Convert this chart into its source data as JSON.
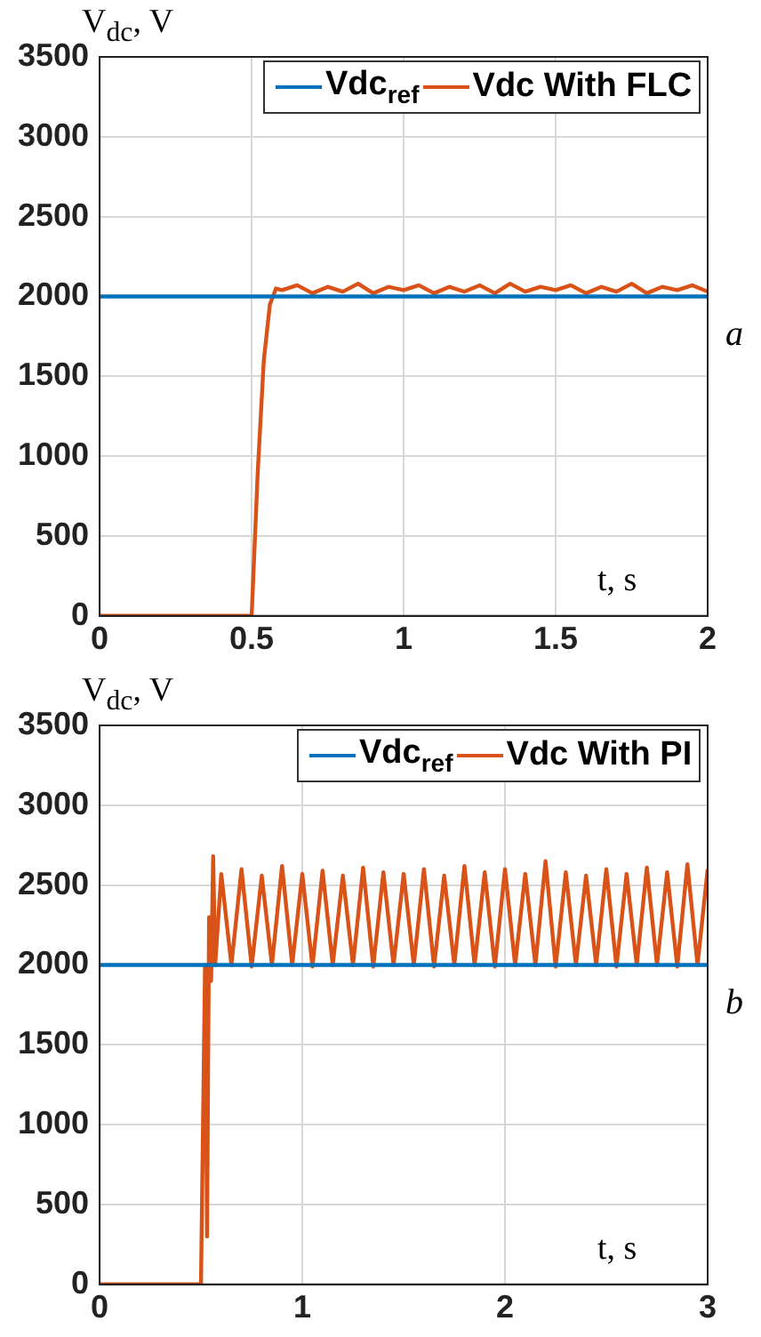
{
  "chart_data": [
    {
      "type": "line",
      "ylabel": "V$_{dc}$, V",
      "xlabel": "t, s",
      "annotations": [
        "a"
      ],
      "xlim": [
        0,
        2
      ],
      "xticks": [
        0,
        0.5,
        1,
        1.5,
        2
      ],
      "ylim": [
        0,
        3500
      ],
      "yticks": [
        0,
        500,
        1000,
        1500,
        2000,
        2500,
        3000,
        3500
      ],
      "grid": true,
      "legend": "top right",
      "marker": "none",
      "line_style": "solid",
      "series": [
        {
          "name": "Vdc$_{ref}$",
          "color": "#0072bd",
          "x": [
            0,
            2
          ],
          "values": [
            2000,
            2000
          ]
        },
        {
          "name": "Vdc With FLC",
          "color": "#d95319",
          "x": [
            0,
            0.5,
            0.52,
            0.54,
            0.56,
            0.58,
            0.6,
            0.65,
            0.7,
            0.75,
            0.8,
            0.85,
            0.9,
            0.95,
            1,
            1.05,
            1.1,
            1.15,
            1.2,
            1.25,
            1.3,
            1.35,
            1.4,
            1.45,
            1.5,
            1.55,
            1.6,
            1.65,
            1.7,
            1.75,
            1.8,
            1.85,
            1.9,
            1.95,
            2
          ],
          "values": [
            0,
            0,
            900,
            1600,
            1950,
            2050,
            2040,
            2070,
            2020,
            2060,
            2030,
            2080,
            2020,
            2060,
            2040,
            2070,
            2020,
            2060,
            2030,
            2070,
            2020,
            2080,
            2030,
            2060,
            2040,
            2070,
            2020,
            2060,
            2030,
            2080,
            2020,
            2060,
            2040,
            2070,
            2030
          ]
        }
      ]
    },
    {
      "type": "line",
      "ylabel": "V$_{dc}$, V",
      "xlabel": "t, s",
      "annotations": [
        "b"
      ],
      "xlim": [
        0,
        3
      ],
      "xticks": [
        0,
        1,
        2,
        3
      ],
      "ylim": [
        0,
        3500
      ],
      "yticks": [
        0,
        500,
        1000,
        1500,
        2000,
        2500,
        3000,
        3500
      ],
      "grid": true,
      "legend": "top right",
      "marker": "none",
      "line_style": "solid",
      "series": [
        {
          "name": "Vdc$_{ref}$",
          "color": "#0072bd",
          "x": [
            0,
            3
          ],
          "values": [
            2000,
            2000
          ]
        },
        {
          "name": "Vdc With PI",
          "color": "#d95319",
          "x": [
            0,
            0.5,
            0.51,
            0.52,
            0.53,
            0.54,
            0.55,
            0.56,
            0.57,
            0.6,
            0.65,
            0.7,
            0.75,
            0.8,
            0.85,
            0.9,
            0.95,
            1,
            1.05,
            1.1,
            1.15,
            1.2,
            1.25,
            1.3,
            1.35,
            1.4,
            1.45,
            1.5,
            1.55,
            1.6,
            1.65,
            1.7,
            1.75,
            1.8,
            1.85,
            1.9,
            1.95,
            2,
            2.05,
            2.1,
            2.15,
            2.2,
            2.25,
            2.3,
            2.35,
            2.4,
            2.45,
            2.5,
            2.55,
            2.6,
            2.65,
            2.7,
            2.75,
            2.8,
            2.85,
            2.9,
            2.95,
            3
          ],
          "values": [
            0,
            0,
            1000,
            2000,
            300,
            2300,
            1900,
            2680,
            2000,
            2570,
            2000,
            2600,
            1990,
            2560,
            2000,
            2620,
            2000,
            2570,
            1990,
            2590,
            2000,
            2560,
            2000,
            2610,
            1990,
            2580,
            2000,
            2570,
            2000,
            2600,
            1990,
            2560,
            2000,
            2620,
            2000,
            2580,
            1990,
            2600,
            2000,
            2570,
            2000,
            2650,
            1990,
            2580,
            2000,
            2560,
            2000,
            2600,
            1990,
            2570,
            2000,
            2610,
            2000,
            2580,
            1990,
            2630,
            2000,
            2600
          ]
        }
      ]
    }
  ]
}
